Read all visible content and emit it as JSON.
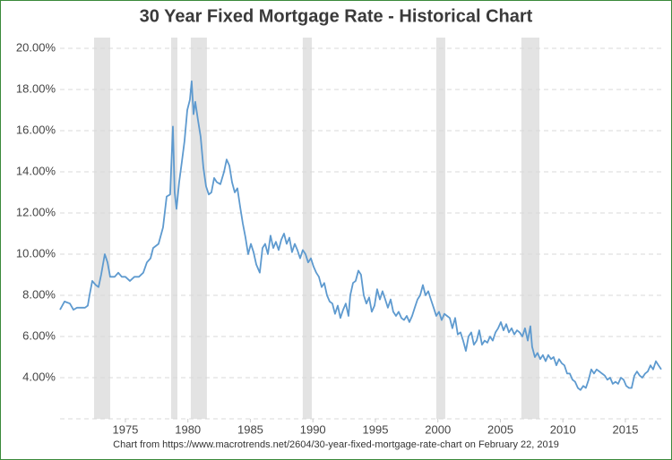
{
  "chart_data": {
    "type": "line",
    "title": "30 Year Fixed Mortgage Rate - Historical Chart",
    "source": "Chart from https://www.macrotrends.net/2604/30-year-fixed-mortgage-rate-chart on February 22, 2019",
    "xlim": [
      1969.77,
      2017.87
    ],
    "xticks": [
      1975,
      1980,
      1985,
      1990,
      1995,
      2000,
      2005,
      2010,
      2015
    ],
    "ylim": [
      2,
      20
    ],
    "yticks": [
      {
        "value": 4,
        "label": "4.00%"
      },
      {
        "value": 6,
        "label": "6.00%"
      },
      {
        "value": 8,
        "label": "8.00%"
      },
      {
        "value": 10,
        "label": "10.00%"
      },
      {
        "value": 12,
        "label": "12.00%"
      },
      {
        "value": 14,
        "label": "14.00%"
      },
      {
        "value": 16,
        "label": "16.00%"
      },
      {
        "value": 18,
        "label": "18.00%"
      },
      {
        "value": 20,
        "label": "20.00%"
      }
    ],
    "grid": true,
    "shaded_ranges": [
      [
        1972.49,
        1973.78
      ],
      [
        1978.66,
        1979.16
      ],
      [
        1980.23,
        1981.52
      ],
      [
        1989.19,
        1989.91
      ],
      [
        1999.87,
        2000.59
      ],
      [
        2006.68,
        2008.12
      ]
    ],
    "shade_color": "#e3e3e3",
    "color": "#5e9acf",
    "x": [
      1969.77,
      1970.13,
      1970.56,
      1970.84,
      1971.13,
      1971.77,
      1971.99,
      1972.13,
      1972.35,
      1972.63,
      1972.85,
      1973.06,
      1973.35,
      1973.57,
      1973.78,
      1974.14,
      1974.43,
      1974.71,
      1975.0,
      1975.36,
      1975.72,
      1976.08,
      1976.43,
      1976.72,
      1977.01,
      1977.22,
      1977.65,
      1978.01,
      1978.3,
      1978.58,
      1978.8,
      1978.94,
      1979.09,
      1979.3,
      1979.52,
      1979.73,
      1979.95,
      1980.16,
      1980.3,
      1980.45,
      1980.59,
      1980.81,
      1981.02,
      1981.24,
      1981.45,
      1981.67,
      1981.88,
      1982.1,
      1982.31,
      1982.6,
      1982.89,
      1983.1,
      1983.32,
      1983.53,
      1983.75,
      1983.96,
      1984.18,
      1984.39,
      1984.61,
      1984.82,
      1985.04,
      1985.25,
      1985.47,
      1985.75,
      1985.97,
      1986.18,
      1986.4,
      1986.61,
      1986.83,
      1987.04,
      1987.26,
      1987.47,
      1987.69,
      1987.9,
      1988.12,
      1988.33,
      1988.55,
      1988.76,
      1988.98,
      1989.19,
      1989.41,
      1989.62,
      1989.84,
      1990.05,
      1990.27,
      1990.48,
      1990.7,
      1990.91,
      1991.13,
      1991.34,
      1991.56,
      1991.77,
      1991.99,
      1992.2,
      1992.42,
      1992.63,
      1992.85,
      1992.99,
      1993.21,
      1993.42,
      1993.64,
      1993.85,
      1994.07,
      1994.28,
      1994.5,
      1994.71,
      1994.93,
      1995.14,
      1995.36,
      1995.57,
      1995.79,
      1996.0,
      1996.22,
      1996.43,
      1996.65,
      1996.86,
      1997.08,
      1997.29,
      1997.51,
      1997.72,
      1997.94,
      1998.15,
      1998.37,
      1998.58,
      1998.8,
      1999.01,
      1999.23,
      1999.44,
      1999.66,
      1999.87,
      2000.09,
      2000.3,
      2000.52,
      2000.73,
      2000.95,
      2001.16,
      2001.38,
      2001.59,
      2001.81,
      2002.02,
      2002.24,
      2002.45,
      2002.67,
      2002.88,
      2003.1,
      2003.31,
      2003.53,
      2003.74,
      2003.96,
      2004.17,
      2004.39,
      2004.61,
      2004.82,
      2005.04,
      2005.25,
      2005.47,
      2005.68,
      2005.9,
      2006.11,
      2006.33,
      2006.54,
      2006.76,
      2006.97,
      2007.19,
      2007.4,
      2007.54,
      2007.76,
      2007.97,
      2008.19,
      2008.4,
      2008.62,
      2008.83,
      2009.05,
      2009.26,
      2009.48,
      2009.69,
      2009.91,
      2010.12,
      2010.34,
      2010.55,
      2010.77,
      2010.98,
      2011.2,
      2011.41,
      2011.63,
      2011.84,
      2012.06,
      2012.27,
      2012.49,
      2012.7,
      2012.92,
      2013.13,
      2013.35,
      2013.56,
      2013.78,
      2013.99,
      2014.21,
      2014.42,
      2014.64,
      2014.86,
      2015.07,
      2015.29,
      2015.5,
      2015.72,
      2015.93,
      2016.15,
      2016.36,
      2016.58,
      2016.79,
      2017.01,
      2017.22,
      2017.44,
      2017.65,
      2017.87
    ],
    "values": [
      7.3,
      7.7,
      7.6,
      7.3,
      7.4,
      7.4,
      7.5,
      8.0,
      8.7,
      8.5,
      8.4,
      9.0,
      10.0,
      9.6,
      8.9,
      8.9,
      9.1,
      8.9,
      8.9,
      8.7,
      8.9,
      8.9,
      9.1,
      9.6,
      9.8,
      10.3,
      10.5,
      11.3,
      12.8,
      12.9,
      16.2,
      13.0,
      12.2,
      13.5,
      14.5,
      15.5,
      17.0,
      17.5,
      18.4,
      16.8,
      17.4,
      16.5,
      15.7,
      14.2,
      13.3,
      12.9,
      13.0,
      13.7,
      13.5,
      13.4,
      14.0,
      14.6,
      14.3,
      13.5,
      13.0,
      13.2,
      12.3,
      11.5,
      10.8,
      10.0,
      10.5,
      10.1,
      9.5,
      9.1,
      10.3,
      10.5,
      10.0,
      10.9,
      10.3,
      10.6,
      10.2,
      10.7,
      11.0,
      10.5,
      10.8,
      10.1,
      10.5,
      10.2,
      9.8,
      10.2,
      10.0,
      9.6,
      9.8,
      9.4,
      9.1,
      8.9,
      8.4,
      8.6,
      8.0,
      7.7,
      7.6,
      7.1,
      7.5,
      6.9,
      7.3,
      7.6,
      7.0,
      8.0,
      8.6,
      8.7,
      9.2,
      9.0,
      8.0,
      7.6,
      7.9,
      7.2,
      7.5,
      8.3,
      7.8,
      8.2,
      7.8,
      7.4,
      7.8,
      7.2,
      7.0,
      7.2,
      6.9,
      6.8,
      7.0,
      6.7,
      7.0,
      7.4,
      7.8,
      8.0,
      8.5,
      8.0,
      8.2,
      7.8,
      7.4,
      7.0,
      7.2,
      6.8,
      7.1,
      7.0,
      6.9,
      6.4,
      6.9,
      6.1,
      6.2,
      5.8,
      5.3,
      6.0,
      6.2,
      5.6,
      5.8,
      6.3,
      5.6,
      5.8,
      5.7,
      6.0,
      5.8,
      6.2,
      6.4,
      6.7,
      6.3,
      6.6,
      6.2,
      6.4,
      6.1,
      6.3,
      6.2,
      6.0,
      6.4,
      5.8,
      6.5,
      5.5,
      5.0,
      5.2,
      4.9,
      5.1,
      4.8,
      5.1,
      4.9,
      5.0,
      4.6,
      4.9,
      4.7,
      4.6,
      4.2,
      4.2,
      3.9,
      3.8,
      3.5,
      3.4,
      3.6,
      3.5,
      3.9,
      4.4,
      4.2,
      4.4,
      4.3,
      4.2,
      4.1,
      3.9,
      4.0,
      3.7,
      3.8,
      3.7,
      4.0,
      3.9,
      3.6,
      3.5,
      3.5,
      4.1,
      4.3,
      4.1,
      4.0,
      4.2,
      4.3,
      4.6,
      4.4,
      4.8,
      4.6,
      4.4
    ]
  }
}
